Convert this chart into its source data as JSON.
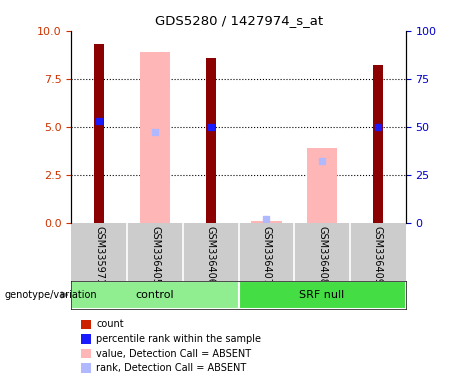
{
  "title": "GDS5280 / 1427974_s_at",
  "samples": [
    "GSM335971",
    "GSM336405",
    "GSM336406",
    "GSM336407",
    "GSM336408",
    "GSM336409"
  ],
  "count_values": [
    9.3,
    null,
    8.6,
    null,
    null,
    8.2
  ],
  "count_color": "#8b0000",
  "percentile_rank": [
    5.3,
    null,
    5.0,
    null,
    null,
    5.0
  ],
  "percentile_color": "#1a1aff",
  "absent_value": [
    null,
    8.9,
    null,
    0.07,
    3.9,
    null
  ],
  "absent_rank": [
    null,
    4.7,
    null,
    0.2,
    3.2,
    null
  ],
  "absent_value_color": "#ffb6b6",
  "absent_rank_color": "#b0b8ff",
  "ylim_left": [
    0,
    10
  ],
  "ylim_right": [
    0,
    100
  ],
  "yticks_left": [
    0,
    2.5,
    5,
    7.5,
    10
  ],
  "yticks_right": [
    0,
    25,
    50,
    75,
    100
  ],
  "control_color": "#90ee90",
  "srf_color": "#44dd44",
  "xtick_bg": "#cccccc",
  "plot_bg": "#ffffff",
  "legend_items": [
    {
      "label": "count",
      "color": "#cc2200"
    },
    {
      "label": "percentile rank within the sample",
      "color": "#1a1aff"
    },
    {
      "label": "value, Detection Call = ABSENT",
      "color": "#ffb6b6"
    },
    {
      "label": "rank, Detection Call = ABSENT",
      "color": "#b0b8ff"
    }
  ]
}
